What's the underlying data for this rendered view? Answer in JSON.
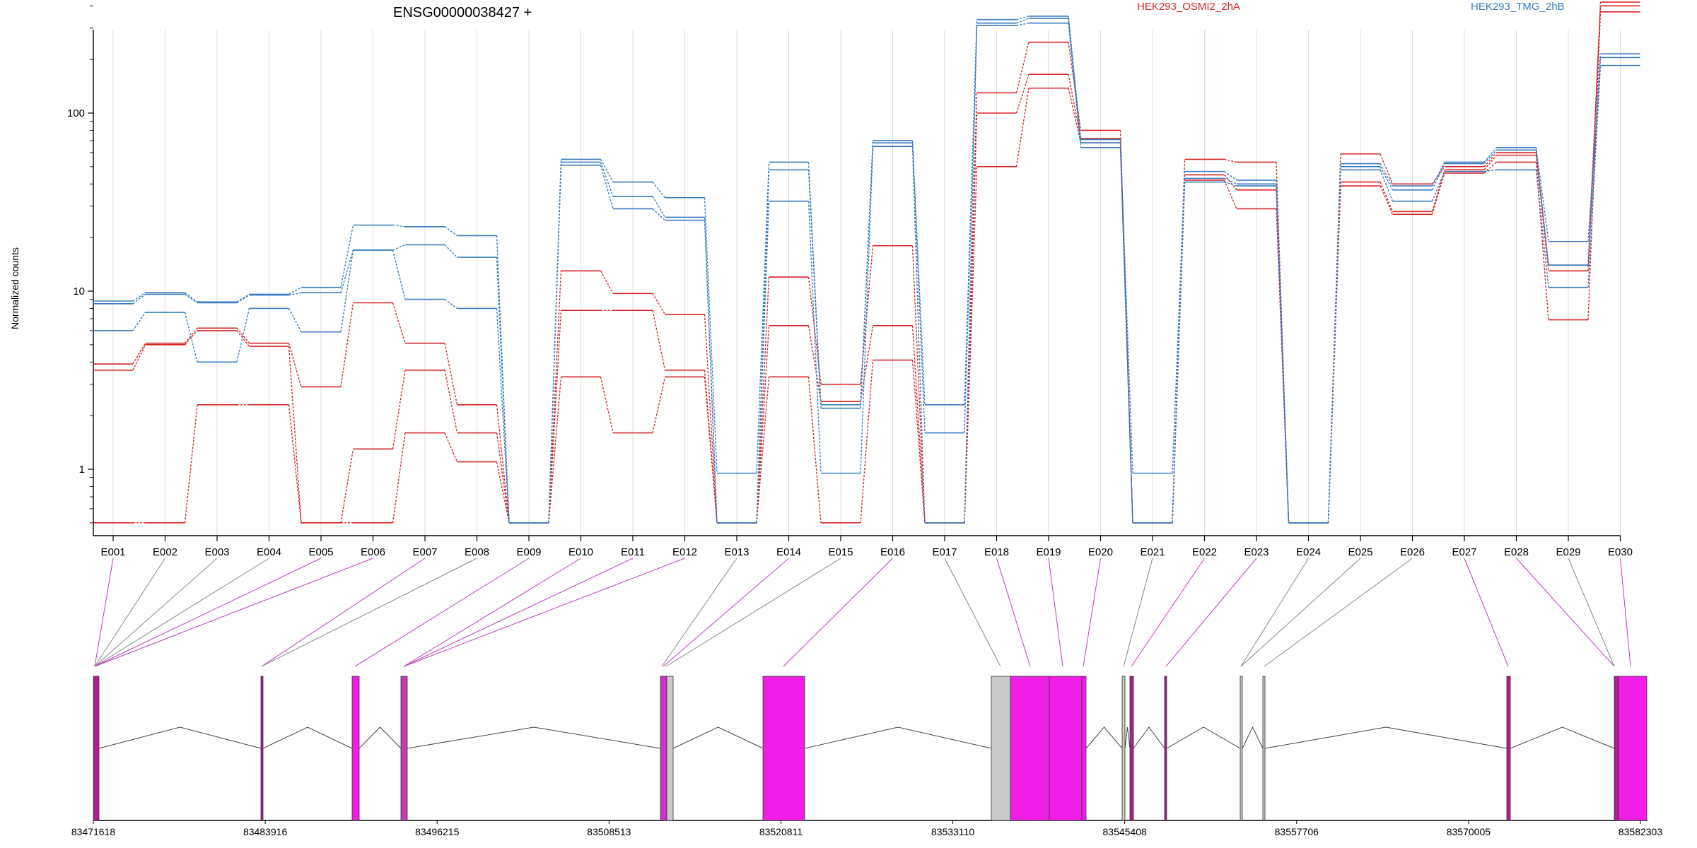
{
  "chart_data": {
    "type": "line",
    "title": "ENSG00000038427 +",
    "ylabel": "Normalized counts",
    "yscale": "log",
    "ylim": [
      0.5,
      500
    ],
    "yticks": [
      "1",
      "10",
      "100"
    ],
    "categories": [
      "E001",
      "E002",
      "E003",
      "E004",
      "E005",
      "E006",
      "E007",
      "E008",
      "E009",
      "E010",
      "E011",
      "E012",
      "E013",
      "E014",
      "E015",
      "E016",
      "E017",
      "E018",
      "E019",
      "E020",
      "E021",
      "E022",
      "E023",
      "E024",
      "E025",
      "E026",
      "E027",
      "E028",
      "E029",
      "E030"
    ],
    "conditions": [
      {
        "label": "HEK293_OSMI2_2hA",
        "color": "#d62728"
      },
      {
        "label": "HEK293_TMG_2hB",
        "color": "#3a7cbf"
      }
    ],
    "series": [
      {
        "condition": 0,
        "values": [
          3.9,
          5.1,
          6.2,
          5.1,
          2.9,
          8.6,
          5.1,
          2.3,
          0.5,
          13,
          9.7,
          7.4,
          0.5,
          12,
          3.0,
          18,
          0.5,
          130,
          250,
          80,
          0.5,
          55,
          53,
          0.5,
          59,
          40,
          50,
          60,
          14,
          420
        ]
      },
      {
        "condition": 0,
        "values": [
          3.6,
          5.0,
          6.0,
          4.9,
          0.5,
          1.3,
          3.6,
          1.6,
          0.5,
          7.8,
          7.8,
          3.6,
          0.5,
          6.4,
          2.4,
          6.4,
          0.5,
          100,
          165,
          72,
          0.5,
          45,
          37,
          0.5,
          41,
          28,
          48,
          58,
          13,
          400
        ]
      },
      {
        "condition": 0,
        "values": [
          0.5,
          0.5,
          2.3,
          2.3,
          0.5,
          0.5,
          1.6,
          1.1,
          0.5,
          3.3,
          1.6,
          3.3,
          0.5,
          3.3,
          0.5,
          4.1,
          0.5,
          50,
          138,
          68,
          0.5,
          42,
          29,
          0.5,
          39,
          27,
          46,
          53,
          6.9,
          370
        ]
      },
      {
        "condition": 1,
        "values": [
          8.8,
          9.8,
          8.7,
          9.6,
          10.5,
          23.5,
          23,
          20.5,
          0.5,
          55,
          41,
          33.5,
          0.95,
          53,
          2.3,
          70,
          2.3,
          335,
          350,
          71,
          0.95,
          47,
          42,
          0.5,
          52,
          39,
          53,
          64,
          19,
          215
        ]
      },
      {
        "condition": 1,
        "values": [
          8.5,
          9.6,
          8.6,
          9.5,
          9.8,
          17,
          18.2,
          15.5,
          0.5,
          53,
          34,
          26,
          0.5,
          48,
          2.2,
          68,
          1.6,
          320,
          340,
          68,
          0.5,
          43,
          40,
          0.5,
          50,
          37,
          52,
          62,
          14,
          205
        ]
      },
      {
        "condition": 1,
        "values": [
          6.0,
          7.6,
          4.0,
          8.0,
          5.9,
          17,
          9.0,
          8.0,
          0.5,
          51,
          29,
          25,
          0.5,
          32,
          0.95,
          65,
          0.5,
          310,
          320,
          64,
          0.5,
          41,
          39,
          0.5,
          48,
          32,
          47,
          48,
          10.5,
          185
        ]
      }
    ],
    "genome_coordinates": [
      "83471618",
      "83483916",
      "83496215",
      "83508513",
      "83520811",
      "83533110",
      "83545408",
      "83557706",
      "83570005",
      "83582303"
    ]
  }
}
